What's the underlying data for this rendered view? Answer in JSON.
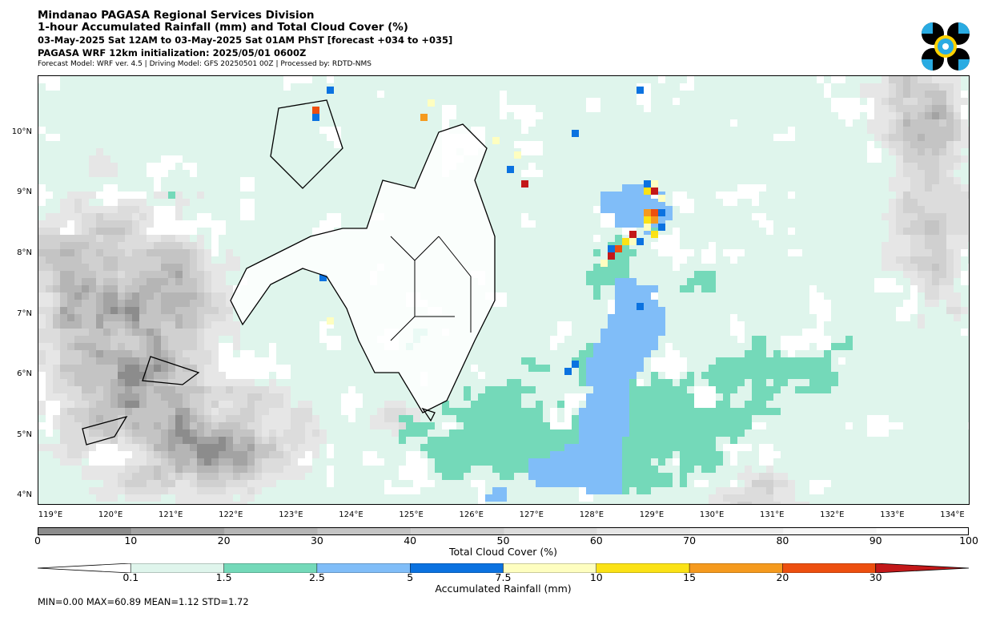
{
  "header": {
    "org": "Mindanao PAGASA Regional Services Division",
    "product": "1-hour Accumulated Rainfall (mm) and Total Cloud Cover (%)",
    "valid_time": "03-May-2025 Sat 12AM to 03-May-2025 Sat 01AM PhST [forecast +034 to +035]",
    "init": "PAGASA WRF 12km initialization: 2025/05/01 0600Z",
    "model_info": "Forecast Model: WRF ver. 4.5 | Driving Model: GFS 20250501 00Z | Processed by: RDTD-NMS"
  },
  "logo": {
    "name": "PAGASA logo",
    "colors": [
      "#000000",
      "#29abe2",
      "#ffd200"
    ]
  },
  "map": {
    "lat_labels": [
      "10°N",
      "9°N",
      "8°N",
      "7°N",
      "6°N",
      "5°N",
      "4°N"
    ],
    "lon_labels": [
      "119°E",
      "120°E",
      "121°E",
      "122°E",
      "123°E",
      "124°E",
      "125°E",
      "126°E",
      "127°E",
      "128°E",
      "129°E",
      "130°E",
      "131°E",
      "132°E",
      "133°E",
      "134°E"
    ]
  },
  "cloud_colorbar": {
    "label": "Total Cloud Cover (%)",
    "ticks": [
      "0",
      "10",
      "20",
      "30",
      "40",
      "50",
      "60",
      "70",
      "80",
      "90",
      "100"
    ],
    "colors": [
      "#8c8c8c",
      "#a3a3a3",
      "#b5b5b5",
      "#c4c4c4",
      "#d0d0d0",
      "#dcdcdc",
      "#e6e6e6",
      "#eeeeee",
      "#f6f6f6",
      "#ffffff"
    ]
  },
  "rain_colorbar": {
    "label": "Accumulated Rainfall (mm)",
    "ticks": [
      "0.1",
      "1.5",
      "2.5",
      "5",
      "7.5",
      "10",
      "15",
      "20",
      "30"
    ],
    "colors": [
      "#dff5ec",
      "#74d9b9",
      "#80bdf8",
      "#0b72e0",
      "#fefec0",
      "#fbe216",
      "#f59a1e",
      "#ed4f0f",
      "#c31819"
    ]
  },
  "stats": {
    "text": "MIN=0.00   MAX=60.89   MEAN=1.12   STD=1.72"
  },
  "chart_data": {
    "type": "heatmap",
    "title": "1-hour Accumulated Rainfall (mm) and Total Cloud Cover (%)",
    "xlabel": "",
    "ylabel": "",
    "xlim": [
      119,
      134.5
    ],
    "ylim": [
      3.9,
      11.0
    ],
    "rain_bounds": [
      0.1,
      1.5,
      2.5,
      5,
      7.5,
      10,
      15,
      20,
      30
    ],
    "rain_max": 60.89,
    "rain_mean": 1.12,
    "rain_std": 1.72,
    "cloud_range": [
      0,
      100
    ],
    "notable_features": [
      {
        "description": "heavy rain band east of Mindanao",
        "lon_range": [
          128.8,
          129.4
        ],
        "lat_range": [
          7.8,
          9.2
        ],
        "rain_mm": "15-30+"
      },
      {
        "description": "moderate rain band",
        "lon_range": [
          127.5,
          128.5
        ],
        "lat_range": [
          5.5,
          7.5
        ],
        "rain_mm": "2.5-7.5"
      },
      {
        "description": "overcast clouds west/southwest",
        "lon_range": [
          119,
          121.5
        ],
        "lat_range": [
          4.5,
          9.5
        ],
        "cloud_pct": "60-90"
      }
    ]
  }
}
